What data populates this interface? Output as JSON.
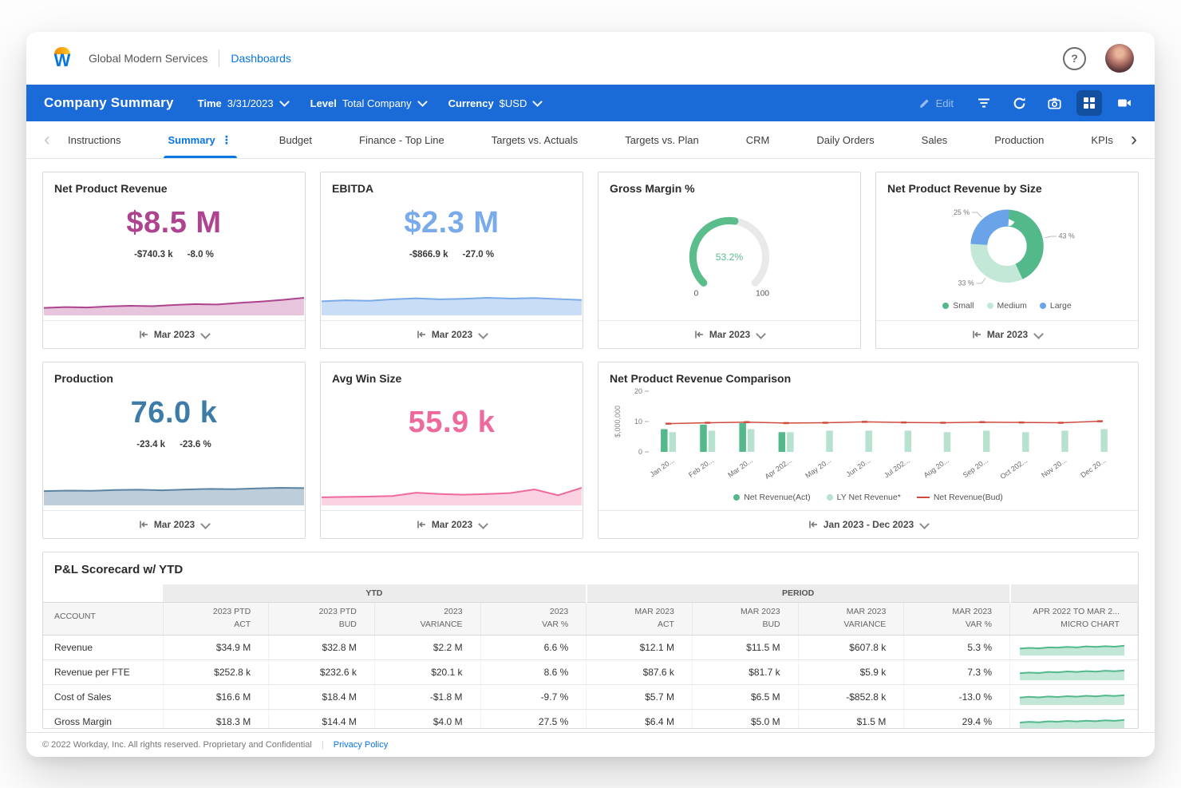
{
  "icons": {
    "help": "?",
    "scroll_left": "‹",
    "scroll_right": "›",
    "tab_menu": "⋮"
  },
  "colors": {
    "accent_blue": "#0875e1",
    "header_blue": "#1a6bd8",
    "magenta": "#ae4390",
    "light_blue": "#79aae9",
    "steel_blue": "#3d7ba8",
    "pink": "#ef6a9c",
    "green": "#53b98a",
    "light_green": "#b7e2cf",
    "red": "#cf4c3e",
    "gauge_green": "#5bbd8b"
  },
  "topbar": {
    "brand": "Global Modern Services",
    "dashboards": "Dashboards"
  },
  "header": {
    "title": "Company Summary",
    "time_label": "Time",
    "time_value": "3/31/2023",
    "level_label": "Level",
    "level_value": "Total Company",
    "currency_label": "Currency",
    "currency_value": "$USD",
    "edit_label": "Edit"
  },
  "tabs": {
    "items": [
      "Instructions",
      "Summary",
      "Budget",
      "Finance - Top Line",
      "Targets vs. Actuals",
      "Targets vs. Plan",
      "CRM",
      "Daily Orders",
      "Sales",
      "Production",
      "KPIs"
    ],
    "active": "Summary"
  },
  "cards": {
    "net_product_revenue": {
      "title": "Net Product Revenue",
      "value": "$8.5 M",
      "delta_abs": "-$740.3 k",
      "delta_pct": "-8.0 %",
      "period": "Mar 2023"
    },
    "ebitda": {
      "title": "EBITDA",
      "value": "$2.3 M",
      "delta_abs": "-$866.9 k",
      "delta_pct": "-27.0 %",
      "period": "Mar 2023"
    },
    "gross_margin": {
      "title": "Gross Margin %",
      "value": "53.2%",
      "period": "Mar 2023"
    },
    "npr_by_size": {
      "title": "Net Product Revenue by Size",
      "period": "Mar 2023"
    },
    "production": {
      "title": "Production",
      "value": "76.0 k",
      "delta_abs": "-23.4 k",
      "delta_pct": "-23.6 %",
      "period": "Mar 2023"
    },
    "avg_win_size": {
      "title": "Avg Win Size",
      "value": "55.9 k",
      "period": "Mar 2023"
    },
    "npr_comparison": {
      "title": "Net Product Revenue Comparison",
      "period": "Jan 2023 - Dec 2023"
    }
  },
  "chart_data": [
    {
      "id": "net_product_revenue_spark",
      "type": "area",
      "values": [
        2.8,
        3.2,
        3.0,
        3.5,
        3.8,
        3.6,
        4.2,
        4.6,
        4.4,
        5.2,
        5.8,
        6.6,
        7.6
      ],
      "color": "#ae4390",
      "fill_opacity": 0.3
    },
    {
      "id": "ebitda_spark",
      "type": "area",
      "values": [
        5.0,
        5.4,
        5.2,
        5.8,
        6.2,
        5.8,
        6.0,
        6.4,
        6.1,
        6.3,
        5.9,
        5.5
      ],
      "color": "#79aae9",
      "fill_opacity": 0.4
    },
    {
      "id": "gross_margin_gauge",
      "type": "gauge",
      "value": 53.2,
      "min": 0,
      "max": 100,
      "label": "53.2%",
      "color": "#5bbd8b",
      "track": "#e9e9e9"
    },
    {
      "id": "npr_by_size_donut",
      "type": "pie",
      "slices": [
        {
          "name": "Small",
          "value": 43,
          "color": "#53b98a"
        },
        {
          "name": "Medium",
          "value": 33,
          "color": "#c3e8d7"
        },
        {
          "name": "Large",
          "value": 25,
          "color": "#6ba3e8"
        }
      ]
    },
    {
      "id": "production_spark",
      "type": "area",
      "values": [
        4.6,
        4.8,
        4.7,
        5.0,
        5.1,
        4.9,
        5.2,
        5.4,
        5.3,
        5.6,
        5.8,
        5.7
      ],
      "color": "#5b84a3",
      "fill_opacity": 0.4
    },
    {
      "id": "avg_win_size_spark",
      "type": "area",
      "values": [
        2.0,
        2.1,
        2.2,
        2.4,
        3.4,
        3.0,
        2.8,
        3.0,
        3.3,
        4.4,
        2.6,
        4.9
      ],
      "color": "#ef6a9c",
      "fill_opacity": 0.3
    },
    {
      "id": "npr_comparison_bars",
      "type": "bar",
      "ylabel": "$,000,000",
      "ylim": [
        0,
        20
      ],
      "yticks": [
        0,
        10,
        20
      ],
      "categories": [
        "Jan 20...",
        "Feb 20...",
        "Mar 20...",
        "Apr 202...",
        "May 20...",
        "Jun 20...",
        "Jul 202...",
        "Aug 20...",
        "Sep 20...",
        "Oct 202...",
        "Nov 20...",
        "Dec 20..."
      ],
      "series": [
        {
          "name": "Net Revenue(Act)",
          "kind": "bar",
          "color": "#53b98a",
          "values": [
            7.5,
            9,
            9.5,
            6.5,
            null,
            null,
            null,
            null,
            null,
            null,
            null,
            null
          ]
        },
        {
          "name": "LY Net Revenue*",
          "kind": "bar",
          "color": "#b7e2cf",
          "values": [
            6.5,
            7,
            7.5,
            6.5,
            7,
            7,
            7,
            6.5,
            7,
            6.5,
            7,
            7.5
          ]
        },
        {
          "name": "Net Revenue(Bud)",
          "kind": "line",
          "color": "#cf4c3e",
          "values": [
            9.3,
            9.6,
            9.8,
            9.5,
            9.6,
            9.9,
            9.7,
            9.6,
            9.8,
            9.7,
            9.6,
            10.1
          ]
        }
      ]
    }
  ],
  "table": {
    "title": "P&L Scorecard w/ YTD",
    "group_headers": [
      {
        "label": "",
        "span": 1,
        "shaded": false
      },
      {
        "label": "YTD",
        "span": 4,
        "shaded": true
      },
      {
        "label": "PERIOD",
        "span": 4,
        "shaded": true
      },
      {
        "label": "",
        "span": 1,
        "shaded": true
      }
    ],
    "columns": [
      {
        "l1": "ACCOUNT",
        "l2": ""
      },
      {
        "l1": "2023 PTD",
        "l2": "ACT"
      },
      {
        "l1": "2023 PTD",
        "l2": "BUD"
      },
      {
        "l1": "2023",
        "l2": "VARIANCE"
      },
      {
        "l1": "2023",
        "l2": "VAR %"
      },
      {
        "l1": "MAR 2023",
        "l2": "ACT"
      },
      {
        "l1": "MAR 2023",
        "l2": "BUD"
      },
      {
        "l1": "MAR 2023",
        "l2": "VARIANCE"
      },
      {
        "l1": "MAR 2023",
        "l2": "VAR %"
      },
      {
        "l1": "APR 2022 TO MAR 2...",
        "l2": "MICRO CHART"
      }
    ],
    "rows": [
      {
        "account": "Revenue",
        "cells": [
          "$34.9 M",
          "$32.8 M",
          "$2.2 M",
          "6.6 %",
          "$12.1 M",
          "$11.5 M",
          "$607.8 k",
          "5.3 %"
        ],
        "micro": [
          5,
          5.6,
          5.2,
          6.0,
          5.8,
          6.4,
          6.0,
          6.8,
          6.4,
          7.0,
          6.6,
          7.4
        ]
      },
      {
        "account": "Revenue per FTE",
        "cells": [
          "$252.8 k",
          "$232.6 k",
          "$20.1 k",
          "8.6 %",
          "$87.6 k",
          "$81.7 k",
          "$5.9 k",
          "7.3 %"
        ],
        "micro": [
          4.8,
          5.4,
          5.0,
          5.8,
          5.5,
          6.2,
          5.8,
          6.5,
          6.1,
          6.8,
          6.4,
          7.0
        ]
      },
      {
        "account": "Cost of Sales",
        "cells": [
          "$16.6 M",
          "$18.4 M",
          "-$1.8 M",
          "-9.7 %",
          "$5.7 M",
          "$6.5 M",
          "-$852.8 k",
          "-13.0 %"
        ],
        "micro": [
          5.2,
          5.8,
          5.4,
          6.1,
          5.7,
          6.3,
          5.9,
          6.6,
          6.2,
          6.9,
          6.5,
          7.1
        ]
      },
      {
        "account": "Gross Margin",
        "cells": [
          "$18.3 M",
          "$14.4 M",
          "$4.0 M",
          "27.5 %",
          "$6.4 M",
          "$5.0 M",
          "$1.5 M",
          "29.4 %"
        ],
        "micro": [
          5,
          5.5,
          5.1,
          5.9,
          5.6,
          6.2,
          5.8,
          6.4,
          6.0,
          6.7,
          6.3,
          7.0
        ]
      }
    ]
  },
  "footer": {
    "copyright": "© 2022 Workday, Inc. All rights reserved. Proprietary and Confidential",
    "privacy": "Privacy Policy"
  }
}
